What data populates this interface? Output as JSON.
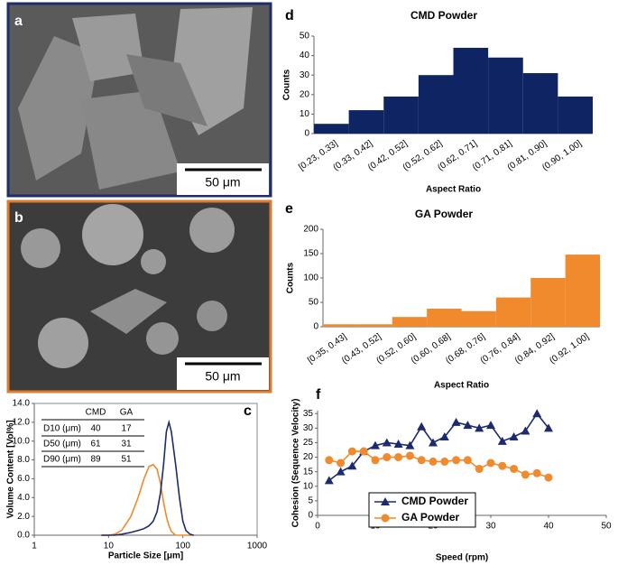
{
  "images": [
    {
      "label": "a",
      "scale_bar": "50 μm"
    },
    {
      "label": "b",
      "scale_bar": "50 μm"
    }
  ],
  "chart_data": [
    {
      "type": "line",
      "panel": "c",
      "x_label": "Particle Size [μm]",
      "y_label": "Volume Content [Vol%]",
      "xlog": true,
      "x": [
        8,
        10,
        12,
        15,
        20,
        25,
        30,
        35,
        40,
        45,
        50,
        55,
        60,
        65,
        70,
        80,
        90,
        100,
        110,
        125,
        140
      ],
      "series": [
        {
          "color": "#f08a2c",
          "values": [
            0,
            0,
            0.1,
            0.5,
            2.0,
            4.0,
            6.0,
            7.3,
            7.5,
            7.0,
            5.5,
            3.5,
            2.0,
            1.0,
            0.4,
            0,
            0,
            0,
            0,
            0,
            0
          ]
        },
        {
          "color": "#1c2a6e",
          "values": [
            0,
            0,
            0,
            0.1,
            0.3,
            0.5,
            0.7,
            1.0,
            1.5,
            2.5,
            4.5,
            7.5,
            11,
            12,
            11,
            7.5,
            4,
            1.5,
            0.5,
            0.1,
            0
          ]
        }
      ],
      "xlim": [
        1,
        1000
      ],
      "xticks": [
        1,
        10,
        100,
        1000
      ],
      "ylim": [
        0,
        14
      ],
      "yticks": [
        {
          "value": 0,
          "label": "0.0"
        },
        {
          "value": 2,
          "label": "2.0"
        },
        {
          "value": 4,
          "label": "4.0"
        },
        {
          "value": 6,
          "label": "6.0"
        },
        {
          "value": 8,
          "label": "8.0"
        },
        {
          "value": 10,
          "label": "10.0"
        },
        {
          "value": 12,
          "label": "12.0"
        },
        {
          "value": 14,
          "label": "14.0"
        }
      ],
      "table": {
        "columns": [
          "CMD",
          "GA"
        ],
        "rows": [
          {
            "label": "D10 (μm)",
            "values": [
              40,
              17
            ]
          },
          {
            "label": "D50 (μm)",
            "values": [
              61,
              31
            ]
          },
          {
            "label": "D90 (μm)",
            "values": [
              89,
              51
            ]
          }
        ]
      }
    },
    {
      "type": "bar",
      "panel": "d",
      "title": "CMD Powder",
      "x_label": "Aspect Ratio",
      "y_label": "Counts",
      "color": "#0f2462",
      "categories": [
        "[0.23, 0.33]",
        "(0.33, 0.42]",
        "(0.42, 0.52]",
        "(0.52, 0.62]",
        "(0.62, 0.71]",
        "(0.71, 0.81]",
        "(0.81, 0.90]",
        "(0.90, 1.00]"
      ],
      "values": [
        5,
        12,
        19,
        30,
        44,
        39,
        31,
        19
      ],
      "ylim": [
        0,
        50
      ],
      "yticks": [
        0,
        10,
        20,
        30,
        40,
        50
      ]
    },
    {
      "type": "bar",
      "panel": "e",
      "title": "GA Powder",
      "x_label": "Aspect Ratio",
      "y_label": "Counts",
      "color": "#f08a2c",
      "categories": [
        "[0.35, 0.43]",
        "(0.43, 0.52]",
        "(0.52, 0.60]",
        "(0.60, 0.68]",
        "(0.68, 0.76]",
        "(0.76, 0.84]",
        "(0.84, 0.92]",
        "(0.92, 1.00]"
      ],
      "values": [
        5,
        5,
        20,
        37,
        32,
        60,
        100,
        148
      ],
      "ylim": [
        0,
        200
      ],
      "yticks": [
        0,
        50,
        100,
        150,
        200
      ]
    },
    {
      "type": "line",
      "panel": "f",
      "x_label": "Speed (rpm)",
      "y_label": "Cohesion (Sequence Velocity)",
      "x": [
        2,
        4,
        6,
        8,
        10,
        12,
        14,
        16,
        18,
        20,
        22,
        24,
        26,
        28,
        30,
        32,
        34,
        36,
        38,
        40
      ],
      "series": [
        {
          "name": "CMD Powder",
          "color": "#1c2a6e",
          "marker": "triangle",
          "values": [
            12,
            15,
            17,
            22,
            24,
            25,
            24.5,
            24,
            30.5,
            25,
            27,
            32,
            31,
            30,
            31,
            25.5,
            27,
            29,
            35,
            30
          ]
        },
        {
          "name": "GA Powder",
          "color": "#f08a2c",
          "marker": "circle",
          "values": [
            19,
            18,
            22,
            22,
            19,
            20,
            20,
            20.5,
            19,
            18.5,
            18.5,
            19,
            19,
            16,
            18,
            17,
            16,
            14,
            14.5,
            13
          ]
        }
      ],
      "xlim": [
        0,
        50
      ],
      "xticks": [
        0,
        10,
        20,
        30,
        40,
        50
      ],
      "ylim": [
        0,
        36
      ],
      "yticks": [
        0,
        5,
        10,
        15,
        20,
        25,
        30,
        35
      ]
    }
  ]
}
